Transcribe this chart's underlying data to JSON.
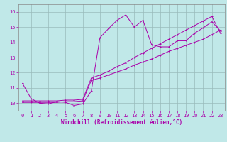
{
  "title": "",
  "xlabel": "Windchill (Refroidissement éolien,°C)",
  "bg_color": "#c0e8e8",
  "line_color": "#aa00aa",
  "grid_color": "#99bbbb",
  "xlim": [
    -0.5,
    23.5
  ],
  "ylim": [
    9.5,
    16.5
  ],
  "yticks": [
    10,
    11,
    12,
    13,
    14,
    15,
    16
  ],
  "xticks": [
    0,
    1,
    2,
    3,
    4,
    5,
    6,
    7,
    8,
    9,
    10,
    11,
    12,
    13,
    14,
    15,
    16,
    17,
    18,
    19,
    20,
    21,
    22,
    23
  ],
  "curve1_x": [
    0,
    1,
    2,
    3,
    4,
    5,
    6,
    7,
    8,
    9,
    10,
    11,
    12,
    13,
    14,
    15,
    16,
    17,
    18,
    19,
    20,
    21,
    22,
    23
  ],
  "curve1_y": [
    11.3,
    10.3,
    10.0,
    9.95,
    10.1,
    10.05,
    9.85,
    9.95,
    10.8,
    14.3,
    14.9,
    15.45,
    15.8,
    15.0,
    15.45,
    13.85,
    13.7,
    13.7,
    14.1,
    14.1,
    14.6,
    14.95,
    15.35,
    14.75
  ],
  "curve2_x": [
    0,
    1,
    2,
    3,
    4,
    5,
    6,
    7,
    8,
    9,
    10,
    11,
    12,
    13,
    14,
    15,
    16,
    17,
    18,
    19,
    20,
    21,
    22,
    23
  ],
  "curve2_y": [
    10.05,
    10.05,
    10.05,
    10.05,
    10.05,
    10.1,
    10.1,
    10.15,
    11.5,
    11.65,
    11.85,
    12.05,
    12.25,
    12.5,
    12.7,
    12.9,
    13.15,
    13.4,
    13.6,
    13.8,
    14.0,
    14.2,
    14.5,
    14.8
  ],
  "curve3_x": [
    0,
    1,
    2,
    3,
    4,
    5,
    6,
    7,
    8,
    9,
    10,
    11,
    12,
    13,
    14,
    15,
    16,
    17,
    18,
    19,
    20,
    21,
    22,
    23
  ],
  "curve3_y": [
    10.15,
    10.15,
    10.15,
    10.15,
    10.15,
    10.2,
    10.2,
    10.25,
    11.65,
    11.85,
    12.1,
    12.4,
    12.65,
    13.0,
    13.3,
    13.6,
    13.9,
    14.2,
    14.5,
    14.8,
    15.1,
    15.4,
    15.7,
    14.6
  ],
  "tick_labelsize": 5,
  "xlabel_fontsize": 5.5,
  "lw": 0.7,
  "ms": 2.0
}
